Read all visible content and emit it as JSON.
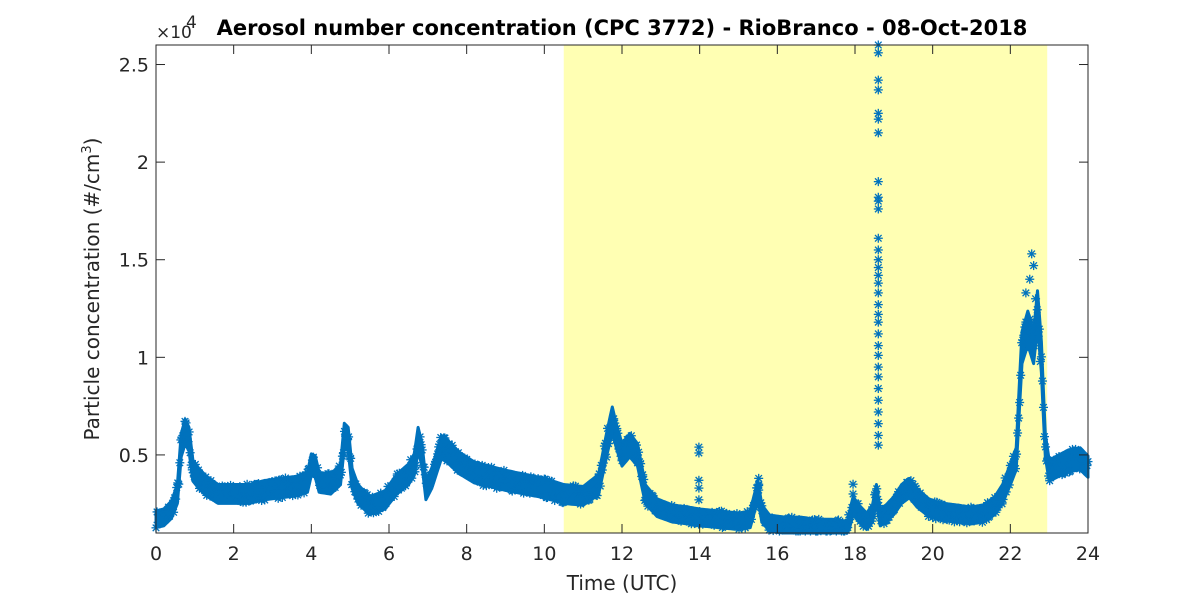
{
  "chart_data": {
    "type": "scatter",
    "title": "Aerosol number concentration (CPC 3772) - RioBranco - 08-Oct-2018",
    "xlabel": "Time (UTC)",
    "ylabel_main": "Particle concentration (#/cm",
    "ylabel_sup": "3",
    "ylabel_end": ")",
    "y_exponent_base": "×10",
    "y_exponent_power": "4",
    "xlim": [
      0,
      24
    ],
    "ylim": [
      0.1,
      2.6
    ],
    "xticks": [
      "0",
      "2",
      "4",
      "6",
      "8",
      "10",
      "12",
      "14",
      "16",
      "18",
      "20",
      "22",
      "24"
    ],
    "yticks": [
      "0.5",
      "1",
      "1.5",
      "2",
      "2.5"
    ],
    "daylight_shading": {
      "start": 10.5,
      "end": 22.95,
      "color": "#ffffb3"
    },
    "marker": "asterisk",
    "series_color": "#0072bd",
    "trend_x": [
      0.0,
      0.2,
      0.4,
      0.55,
      0.65,
      0.75,
      0.85,
      0.95,
      1.1,
      1.3,
      1.6,
      2.0,
      2.4,
      2.8,
      3.2,
      3.6,
      3.9,
      4.0,
      4.1,
      4.2,
      4.5,
      4.75,
      4.85,
      4.95,
      5.05,
      5.2,
      5.5,
      5.9,
      6.2,
      6.5,
      6.65,
      6.75,
      6.85,
      6.95,
      7.1,
      7.35,
      7.5,
      7.8,
      8.2,
      8.6,
      9.0,
      9.5,
      10.0,
      10.5,
      11.0,
      11.4,
      11.6,
      11.75,
      11.85,
      12.0,
      12.2,
      12.4,
      12.6,
      12.9,
      13.3,
      13.7,
      14.0,
      14.5,
      15.0,
      15.3,
      15.5,
      15.6,
      15.8,
      16.2,
      16.6,
      17.0,
      17.4,
      17.8,
      17.95,
      18.1,
      18.3,
      18.45,
      18.55,
      18.65,
      18.8,
      19.0,
      19.2,
      19.4,
      19.6,
      19.9,
      20.2,
      20.6,
      21.0,
      21.3,
      21.6,
      21.8,
      22.0,
      22.15,
      22.3,
      22.45,
      22.6,
      22.7,
      22.8,
      22.9,
      23.0,
      23.2,
      23.5,
      23.8,
      24.0
    ],
    "trend_y": [
      0.17,
      0.18,
      0.22,
      0.3,
      0.55,
      0.62,
      0.58,
      0.42,
      0.38,
      0.34,
      0.3,
      0.3,
      0.3,
      0.32,
      0.33,
      0.34,
      0.36,
      0.45,
      0.44,
      0.36,
      0.35,
      0.4,
      0.6,
      0.58,
      0.38,
      0.3,
      0.24,
      0.27,
      0.35,
      0.4,
      0.45,
      0.58,
      0.5,
      0.32,
      0.38,
      0.54,
      0.52,
      0.46,
      0.41,
      0.39,
      0.37,
      0.35,
      0.33,
      0.3,
      0.29,
      0.35,
      0.55,
      0.68,
      0.6,
      0.5,
      0.55,
      0.5,
      0.3,
      0.23,
      0.2,
      0.19,
      0.18,
      0.17,
      0.16,
      0.17,
      0.32,
      0.2,
      0.15,
      0.14,
      0.14,
      0.13,
      0.13,
      0.12,
      0.24,
      0.2,
      0.16,
      0.2,
      0.3,
      0.18,
      0.2,
      0.24,
      0.3,
      0.33,
      0.28,
      0.23,
      0.21,
      0.2,
      0.19,
      0.2,
      0.24,
      0.3,
      0.4,
      0.48,
      1.05,
      1.15,
      1.05,
      1.25,
      1.0,
      0.55,
      0.42,
      0.44,
      0.47,
      0.48,
      0.44
    ],
    "spike_points": [
      [
        13.98,
        0.54
      ],
      [
        13.98,
        0.51
      ],
      [
        13.98,
        0.37
      ],
      [
        13.98,
        0.33
      ],
      [
        13.98,
        0.27
      ],
      [
        15.52,
        0.38
      ],
      [
        15.52,
        0.35
      ],
      [
        15.52,
        0.32
      ],
      [
        17.95,
        0.35
      ],
      [
        17.95,
        0.3
      ],
      [
        18.6,
        2.6
      ],
      [
        18.6,
        2.56
      ],
      [
        18.6,
        2.42
      ],
      [
        18.6,
        2.37
      ],
      [
        18.6,
        2.25
      ],
      [
        18.6,
        2.22
      ],
      [
        18.6,
        2.15
      ],
      [
        18.6,
        1.9
      ],
      [
        18.6,
        1.82
      ],
      [
        18.6,
        1.8
      ],
      [
        18.6,
        1.76
      ],
      [
        18.6,
        1.61
      ],
      [
        18.6,
        1.55
      ],
      [
        18.6,
        1.5
      ],
      [
        18.6,
        1.46
      ],
      [
        18.6,
        1.42
      ],
      [
        18.6,
        1.38
      ],
      [
        18.6,
        1.33
      ],
      [
        18.6,
        1.27
      ],
      [
        18.6,
        1.22
      ],
      [
        18.6,
        1.18
      ],
      [
        18.6,
        1.12
      ],
      [
        18.6,
        1.06
      ],
      [
        18.6,
        1.01
      ],
      [
        18.6,
        0.95
      ],
      [
        18.6,
        0.9
      ],
      [
        18.6,
        0.84
      ],
      [
        18.6,
        0.78
      ],
      [
        18.6,
        0.72
      ],
      [
        18.6,
        0.66
      ],
      [
        18.6,
        0.6
      ],
      [
        18.6,
        0.55
      ],
      [
        22.55,
        1.53
      ],
      [
        22.6,
        1.47
      ],
      [
        22.5,
        1.4
      ],
      [
        22.4,
        1.33
      ],
      [
        22.65,
        1.3
      ]
    ]
  }
}
